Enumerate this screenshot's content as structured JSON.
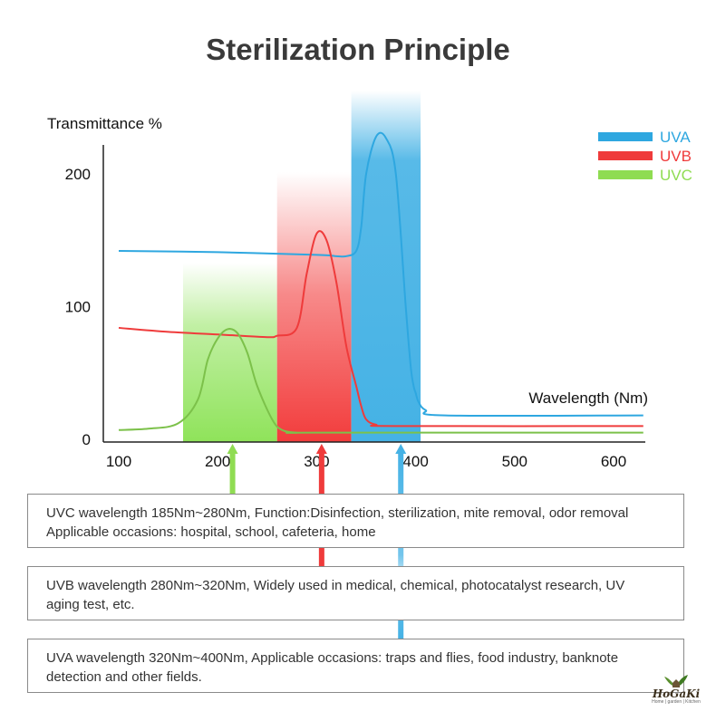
{
  "title": "Sterilization Principle",
  "chart_data": {
    "type": "line",
    "ylabel": "Transmittance %",
    "xlabel": "Wavelength (Nm)",
    "xlim": [
      100,
      630
    ],
    "ylim": [
      0,
      230
    ],
    "xticks": [
      100,
      200,
      300,
      400,
      500,
      600
    ],
    "yticks": [
      0,
      100,
      200
    ],
    "grid": false,
    "legend_position": "top-right",
    "bands": [
      {
        "name": "UVC",
        "x_start": 165,
        "x_end": 260,
        "color": "#8fe35a"
      },
      {
        "name": "UVB",
        "x_start": 260,
        "x_end": 335,
        "color": "#f23c3c"
      },
      {
        "name": "UVA",
        "x_start": 335,
        "x_end": 405,
        "color": "#45b2e5"
      }
    ],
    "series": [
      {
        "name": "UVA",
        "color": "#2ea7e0",
        "x": [
          100,
          200,
          300,
          320,
          330,
          340,
          345,
          350,
          360,
          370,
          380,
          390,
          395,
          398,
          400,
          403,
          410,
          430,
          630
        ],
        "y": [
          142,
          141,
          139,
          138,
          138,
          142,
          160,
          200,
          228,
          227,
          200,
          100,
          55,
          40,
          35,
          28,
          22,
          18,
          18
        ]
      },
      {
        "name": "UVB",
        "color": "#ef3b3b",
        "x": [
          100,
          150,
          200,
          250,
          260,
          280,
          290,
          300,
          310,
          320,
          330,
          340,
          345,
          350,
          360,
          380,
          630
        ],
        "y": [
          84,
          81,
          79,
          77,
          78,
          84,
          125,
          155,
          150,
          118,
          70,
          40,
          25,
          15,
          11,
          10,
          10
        ]
      },
      {
        "name": "UVC",
        "color": "#7cc14a",
        "x": [
          100,
          130,
          160,
          180,
          190,
          200,
          210,
          220,
          230,
          240,
          255,
          265,
          280,
          300,
          630
        ],
        "y": [
          7,
          8,
          12,
          30,
          60,
          76,
          83,
          80,
          65,
          40,
          15,
          7,
          5,
          5,
          5
        ]
      }
    ],
    "legend": [
      {
        "label": "UVA",
        "color": "#2ea7e0"
      },
      {
        "label": "UVB",
        "color": "#ef3b3b"
      },
      {
        "label": "UVC",
        "color": "#8fdc52"
      }
    ],
    "arrows": [
      {
        "name": "UVC",
        "x": 215,
        "color": "#8fdc52"
      },
      {
        "name": "UVB",
        "x": 305,
        "color": "#ef3b3b"
      },
      {
        "name": "UVA",
        "x": 385,
        "color": "#45b2e5"
      }
    ]
  },
  "boxes": {
    "uvc": {
      "line1": "UVC wavelength 185Nm~280Nm,   Function:Disinfection, sterilization, mite removal, odor removal",
      "line2": "Applicable occasions: hospital, school, cafeteria, home"
    },
    "uvb": {
      "line1": "UVB wavelength 280Nm~320Nm,   Widely used in medical, chemical, photocatalyst research, UV",
      "line2": "aging test, etc."
    },
    "uva": {
      "line1": "UVA wavelength 320Nm~400Nm,   Applicable occasions: traps and flies, food industry, banknote",
      "line2": "detection and other fields."
    }
  },
  "logo": {
    "brand": "HoGaKi",
    "tagline": "Home | garden | Kitchen"
  }
}
